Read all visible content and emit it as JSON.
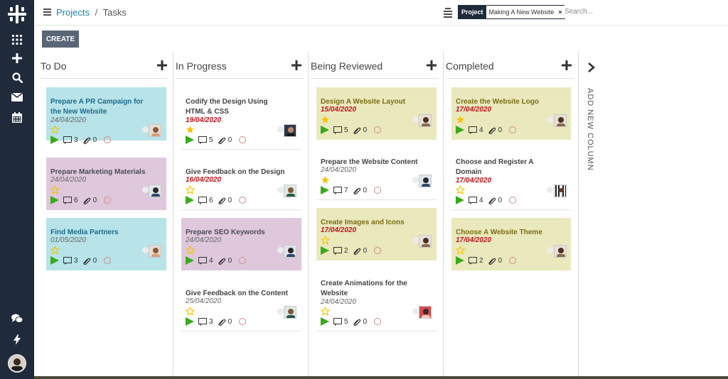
{
  "sidebar": {
    "icons": [
      "logo-icon",
      "apps-grid-icon",
      "plus-icon",
      "search-icon",
      "mail-icon",
      "calendar-icon",
      "chat-icon",
      "bolt-icon"
    ]
  },
  "header": {
    "breadcrumb_root": "Projects",
    "breadcrumb_sep": "/",
    "breadcrumb_current": "Tasks",
    "facet_label": "Project",
    "facet_value": "Making A New Website",
    "facet_remove": "×",
    "search_placeholder": "Search..."
  },
  "toolbar": {
    "create_label": "CREATE"
  },
  "columns": [
    {
      "title": "To Do",
      "cards": [
        {
          "title": "Prepare A PR Campaign for the New Website",
          "date": "24/04/2020",
          "starred": false,
          "messages": "3",
          "attachments": "0",
          "color": "blue"
        },
        {
          "title": "Prepare Marketing Materials",
          "date": "24/04/2020",
          "starred": false,
          "messages": "6",
          "attachments": "0",
          "color": "purple"
        },
        {
          "title": "Find Media Partners",
          "date": "01/05/2020",
          "starred": false,
          "messages": "3",
          "attachments": "0",
          "color": "blue"
        }
      ]
    },
    {
      "title": "In Progress",
      "cards": [
        {
          "title": "Codify the Design Using HTML & CSS",
          "date": "19/04/2020",
          "starred": true,
          "messages": "5",
          "attachments": "0",
          "color": "white"
        },
        {
          "title": "Give Feedback on the Design",
          "date": "16/04/2020",
          "starred": false,
          "messages": "6",
          "attachments": "0",
          "color": "white"
        },
        {
          "title": "Prepare SEO Keywords",
          "date": "24/04/2020",
          "starred": false,
          "messages": "4",
          "attachments": "0",
          "color": "purple"
        },
        {
          "title": "Give Feedback on the Content",
          "date": "25/04/2020",
          "starred": false,
          "messages": "3",
          "attachments": "0",
          "color": "white"
        }
      ]
    },
    {
      "title": "Being Reviewed",
      "cards": [
        {
          "title": "Design A Website Layout",
          "date": "15/04/2020",
          "starred": true,
          "messages": "5",
          "attachments": "0",
          "color": "yellow"
        },
        {
          "title": "Prepare the Website Content",
          "date": "24/04/2020",
          "starred": true,
          "messages": "7",
          "attachments": "0",
          "color": "white"
        },
        {
          "title": "Create Images and Icons",
          "date": "17/04/2020",
          "starred": false,
          "messages": "2",
          "attachments": "0",
          "color": "yellow"
        },
        {
          "title": "Create Animations for the Website",
          "date": "24/04/2020",
          "starred": false,
          "messages": "5",
          "attachments": "0",
          "color": "white"
        }
      ]
    },
    {
      "title": "Completed",
      "cards": [
        {
          "title": "Create the Website Logo",
          "date": "17/04/2020",
          "starred": true,
          "messages": "4",
          "attachments": "0",
          "color": "yellow"
        },
        {
          "title": "Choose and Register A Domain",
          "date": "17/04/2020",
          "starred": false,
          "messages": "4",
          "attachments": "0",
          "color": "white"
        },
        {
          "title": "Choose A Website Theme",
          "date": "17/04/2020",
          "starred": false,
          "messages": "2",
          "attachments": "0",
          "color": "yellow"
        }
      ]
    }
  ],
  "add_column_label": "ADD NEW COLUMN",
  "colors": {
    "sidebar_bg": "#1f2a3a",
    "accent_link": "#1f83a3",
    "card_blue": "#b7e3e9",
    "card_purple": "#dfc8dc",
    "card_yellow": "#eae8bd",
    "date_overdue": "#c0141c",
    "play_green": "#3aaa1c",
    "star_gold": "#f3c300"
  }
}
